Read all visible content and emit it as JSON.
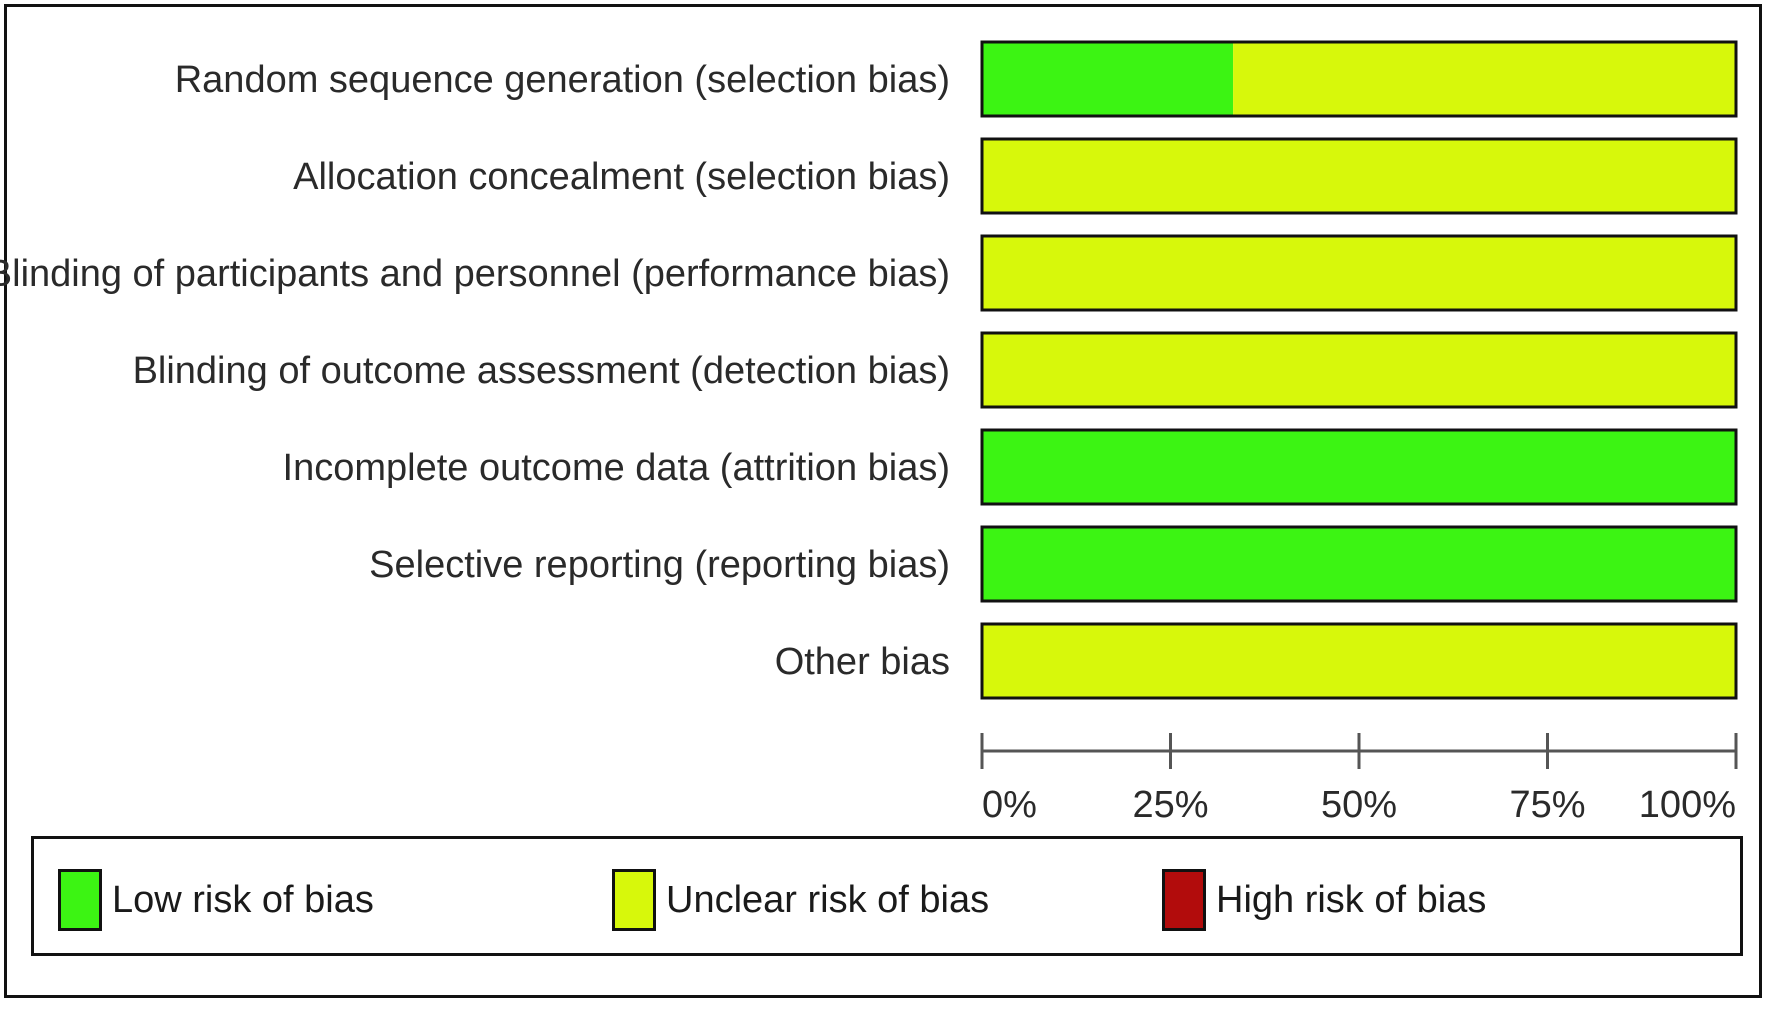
{
  "chart_data": {
    "type": "bar",
    "orientation": "horizontal",
    "stacked": true,
    "categories": [
      "Random sequence generation (selection bias)",
      "Allocation concealment (selection bias)",
      "Blinding of participants and personnel (performance bias)",
      "Blinding of outcome assessment (detection bias)",
      "Incomplete outcome data (attrition bias)",
      "Selective reporting (reporting bias)",
      "Other bias"
    ],
    "series": [
      {
        "name": "Low risk of bias",
        "color": "#3cf413",
        "values": [
          33.3,
          0,
          0,
          0,
          100,
          100,
          0
        ]
      },
      {
        "name": "Unclear risk of bias",
        "color": "#d7f80b",
        "values": [
          66.7,
          100,
          100,
          100,
          0,
          0,
          100
        ]
      },
      {
        "name": "High risk of bias",
        "color": "#b20c0c",
        "values": [
          0,
          0,
          0,
          0,
          0,
          0,
          0
        ]
      }
    ],
    "xlim": [
      0,
      100
    ],
    "x_ticks": [
      "0%",
      "25%",
      "50%",
      "75%",
      "100%"
    ],
    "grid": false,
    "legend_position": "bottom"
  },
  "legend": {
    "items": [
      {
        "label": "Low risk of bias",
        "color": "#3cf413"
      },
      {
        "label": "Unclear risk of bias",
        "color": "#d7f80b"
      },
      {
        "label": "High risk of bias",
        "color": "#b20c0c"
      }
    ]
  }
}
